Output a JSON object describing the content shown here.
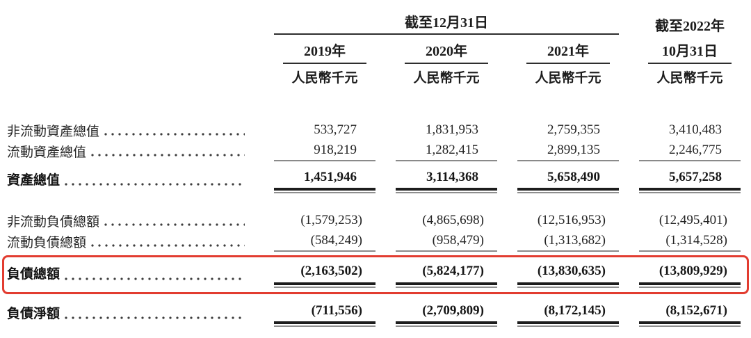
{
  "table": {
    "header": {
      "period_group_label": "截至12月31日",
      "period_group_cols": [
        "2019年",
        "2020年",
        "2021年"
      ],
      "last_col_label_line1": "截至2022年",
      "last_col_label_line2": "10月31日",
      "unit_label": "人民幣千元"
    },
    "rows": [
      {
        "label": "非流動資產總值",
        "values": [
          "533,727",
          "1,831,953",
          "2,759,355",
          "3,410,483"
        ]
      },
      {
        "label": "流動資產總值",
        "values": [
          "918,219",
          "1,282,415",
          "2,899,135",
          "2,246,775"
        ]
      },
      {
        "label": "資產總值",
        "values": [
          "1,451,946",
          "3,114,368",
          "5,658,490",
          "5,657,258"
        ]
      },
      {
        "label": "非流動負債總額",
        "values": [
          "(1,579,253)",
          "(4,865,698)",
          "(12,516,953)",
          "(12,495,401)"
        ]
      },
      {
        "label": "流動負債總額",
        "values": [
          "(584,249)",
          "(958,479)",
          "(1,313,682)",
          "(1,314,528)"
        ]
      },
      {
        "label": "負債總額",
        "values": [
          "(2,163,502)",
          "(5,824,177)",
          "(13,830,635)",
          "(13,809,929)"
        ]
      },
      {
        "label": "負債淨額",
        "values": [
          "(711,556)",
          "(2,709,809)",
          "(8,172,145)",
          "(8,152,671)"
        ]
      }
    ]
  },
  "highlight": {
    "row_label": "負債總額",
    "box_color": "#e23c30"
  }
}
